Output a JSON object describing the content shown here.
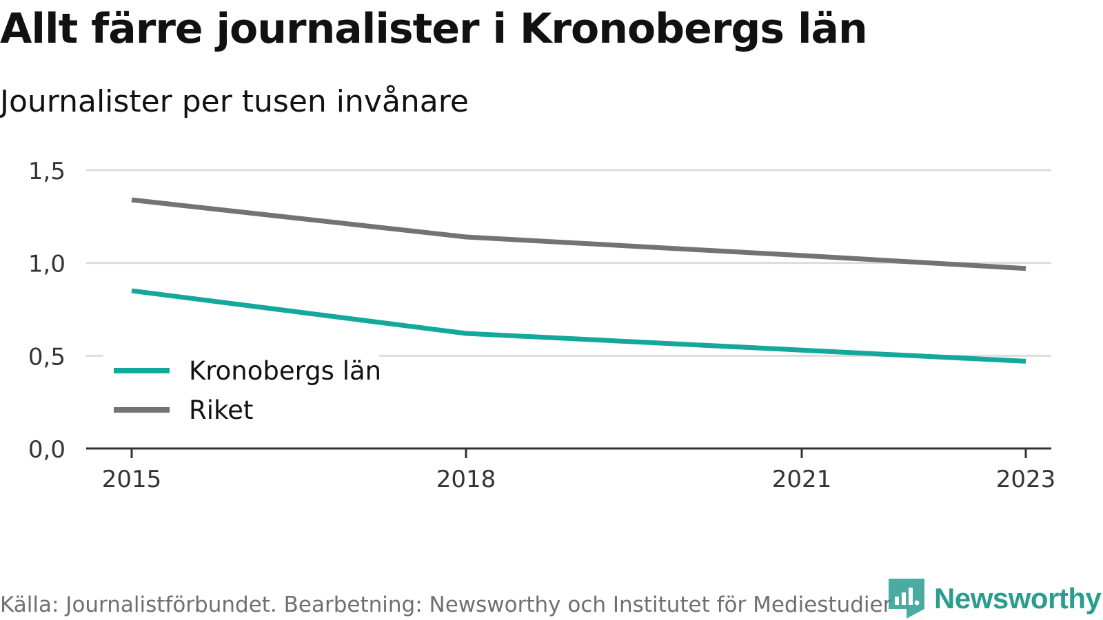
{
  "title": "Allt färre journalister i Kronobergs län",
  "subtitle": "Journalister per tusen invånare",
  "source": "Källa: Journalistförbundet. Bearbetning: Newsworthy och Institutet för Mediestudier",
  "brand": "Newsworthy",
  "colors": {
    "kronoberg": "#14a89c",
    "riket": "#727277",
    "grid": "#dddddd",
    "axis": "#333333",
    "brand": "#2a9d8f"
  },
  "chart_data": {
    "type": "line",
    "x": [
      2015,
      2018,
      2021,
      2023
    ],
    "x_ticks": [
      "2015",
      "2018",
      "2021",
      "2023"
    ],
    "y_ticks": [
      "0,0",
      "0,5",
      "1,0",
      "1,5"
    ],
    "ylim": [
      0,
      1.5
    ],
    "grid": true,
    "legend_position": "bottom-left",
    "series": [
      {
        "name": "Kronobergs län",
        "color_key": "kronoberg",
        "values": [
          0.85,
          0.62,
          0.53,
          0.47
        ]
      },
      {
        "name": "Riket",
        "color_key": "riket",
        "values": [
          1.34,
          1.14,
          1.04,
          0.97
        ]
      }
    ]
  }
}
